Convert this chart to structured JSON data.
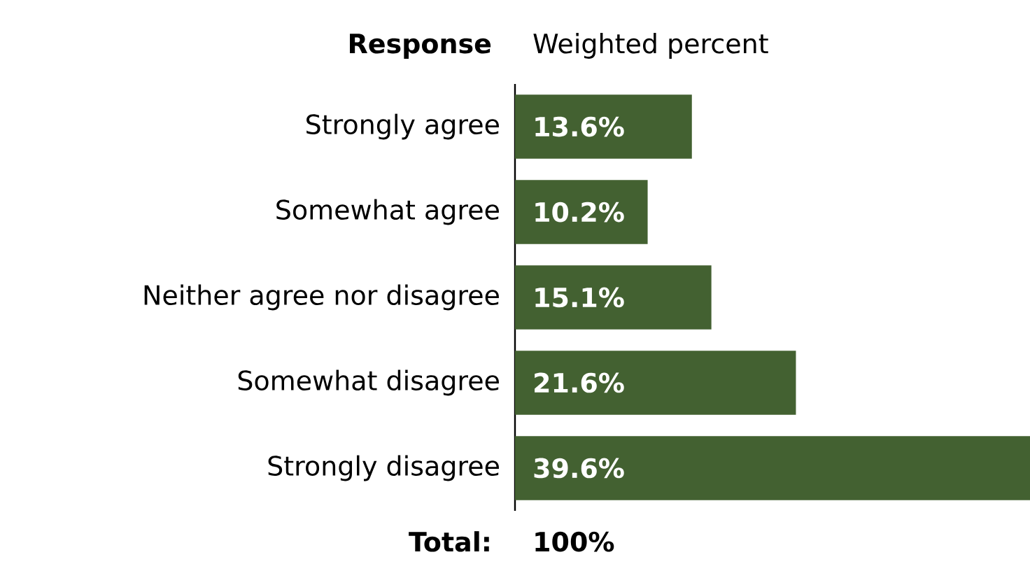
{
  "chart_data": {
    "type": "bar",
    "orientation": "horizontal",
    "ylabel": "Response",
    "xlabel": "Weighted percent",
    "categories": [
      "Strongly agree",
      "Somewhat agree",
      "Neither agree nor disagree",
      "Somewhat disagree",
      "Strongly disagree"
    ],
    "values": [
      13.6,
      10.2,
      15.1,
      21.6,
      39.6
    ],
    "value_labels": [
      "13.6%",
      "10.2%",
      "15.1%",
      "21.6%",
      "39.6%"
    ],
    "color": "#436131",
    "annotations": [
      "Total:",
      "100%"
    ]
  }
}
